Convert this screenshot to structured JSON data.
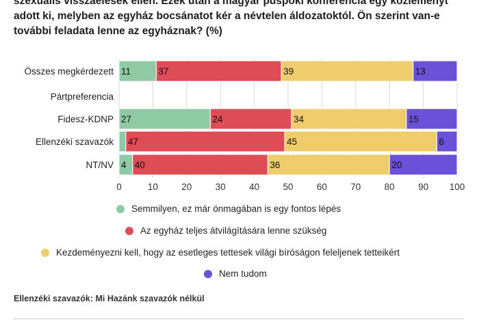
{
  "header": {
    "lines": [
      "szexuális visszaélések ellen. Ezek után a magyar püspöki konferencia egy közleményt",
      "adott ki, melyben az egyház bocsánatot kér a névtelen áldozatoktól. Ön szerint van-e",
      "további feladata lenne az egyháznak? (%)"
    ]
  },
  "chart_data": {
    "type": "bar",
    "orientation": "horizontal",
    "stacked": true,
    "categories": [
      "Összes megkérdezett",
      "Pártpreferencia",
      "Fidesz-KDNP",
      "Ellenzéki szavazók",
      "NT/NV"
    ],
    "series": [
      {
        "name": "Semmilyen, ez már önmagában is egy fontos lépés",
        "color": "#8ecba5",
        "values": [
          11,
          null,
          27,
          2,
          4
        ],
        "labels": [
          "11",
          "",
          "27",
          "",
          "4"
        ]
      },
      {
        "name": "Az egyház teljes átvilágítására lenne szükség",
        "color": "#de4d55",
        "values": [
          37,
          null,
          24,
          47,
          40
        ],
        "labels": [
          "37",
          "",
          "24",
          "47",
          "40"
        ]
      },
      {
        "name": "Kezdeményezni kell, hogy az esetleges tettesek világi bíróságon feleljenek tetteikért",
        "color": "#efcc6c",
        "values": [
          39,
          null,
          34,
          45,
          36
        ],
        "labels": [
          "39",
          "",
          "34",
          "45",
          "36"
        ]
      },
      {
        "name": "Nem tudom",
        "color": "#6b51d8",
        "values": [
          13,
          null,
          15,
          6,
          20
        ],
        "labels": [
          "13",
          "",
          "15",
          "6",
          "20"
        ]
      }
    ],
    "xlim": [
      0,
      100
    ],
    "xticks": [
      0,
      10,
      20,
      30,
      40,
      50,
      60,
      70,
      80,
      90,
      100
    ],
    "grid": true,
    "legend_position": "bottom"
  },
  "footnote": "Ellenzéki szavazók: Mi Hazánk szavazók nélkül"
}
